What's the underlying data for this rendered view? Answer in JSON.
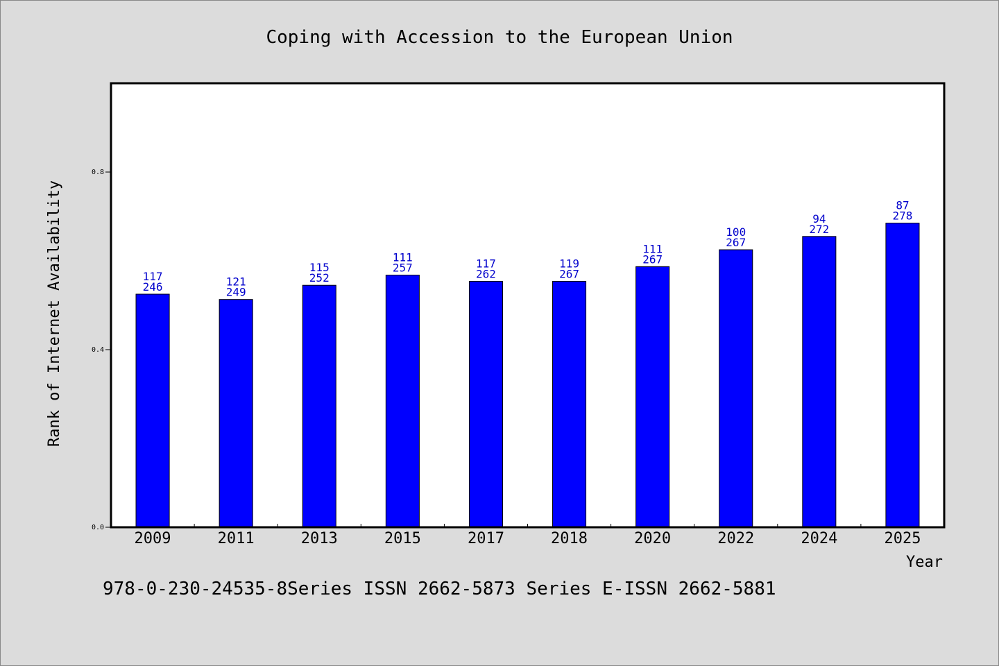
{
  "chart_data": {
    "type": "bar",
    "title": "Coping with Accession to the European Union",
    "xlabel": "Year",
    "ylabel": "Rank of Internet Availability",
    "categories": [
      "2009",
      "2011",
      "2013",
      "2015",
      "2017",
      "2018",
      "2020",
      "2022",
      "2024",
      "2025"
    ],
    "values": [
      0.525,
      0.513,
      0.545,
      0.568,
      0.554,
      0.554,
      0.587,
      0.625,
      0.655,
      0.685
    ],
    "label_top": [
      "117",
      "121",
      "115",
      "111",
      "117",
      "119",
      "111",
      "100",
      "94",
      "87"
    ],
    "label_bottom": [
      "246",
      "249",
      "252",
      "257",
      "262",
      "267",
      "267",
      "267",
      "272",
      "278"
    ],
    "ylim": [
      0,
      1.0
    ],
    "yticks": [
      0.0,
      0.4,
      0.8
    ],
    "ytick_labels": [
      "0.0",
      "0.4",
      "0.8"
    ],
    "grid": false,
    "legend": "none",
    "colors": {
      "bar": "#0000ff",
      "bar_edge": "#000000",
      "data_label": "#0000cc",
      "plot_bg": "#ffffff",
      "figure_bg": "#dcdcdc"
    }
  },
  "footer": {
    "text": "978-0-230-24535-8Series ISSN 2662-5873 Series E-ISSN 2662-5881"
  }
}
